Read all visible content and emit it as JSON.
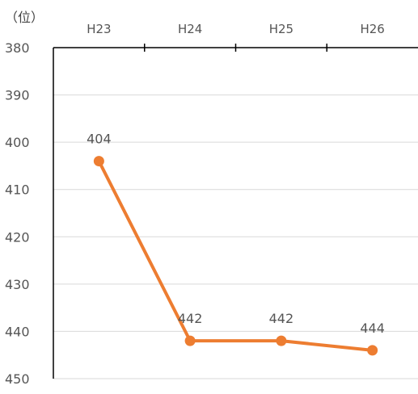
{
  "chart_data": {
    "type": "line",
    "unit_label": "（位）",
    "categories": [
      "H23",
      "H24",
      "H25",
      "H26"
    ],
    "series": [
      {
        "values": [
          404,
          442,
          442,
          444
        ],
        "color": "#ED7D31",
        "data_labels": [
          "404",
          "442",
          "442",
          "444"
        ]
      }
    ],
    "ylim": [
      380,
      450
    ],
    "y_inverted": true,
    "y_ticks": [
      "380",
      "390",
      "400",
      "410",
      "420",
      "430",
      "440",
      "450"
    ],
    "x_axis_position": "top",
    "grid": true,
    "legend": "none"
  }
}
